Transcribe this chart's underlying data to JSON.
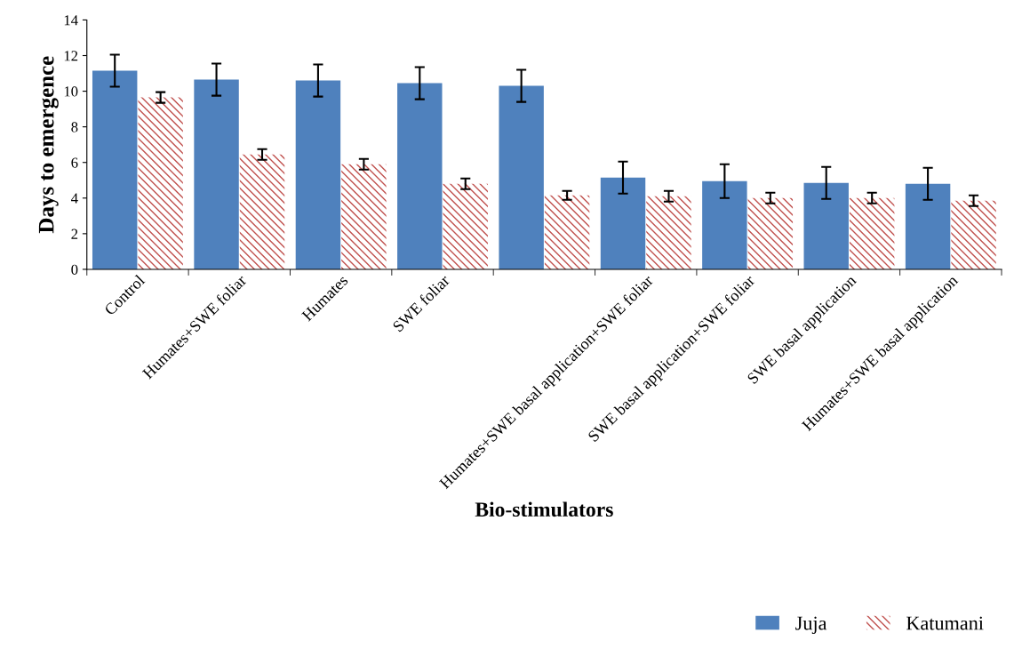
{
  "chart_data": {
    "type": "bar",
    "xlabel": "Bio-stimulators",
    "ylabel": "Days to emergence",
    "categories": [
      "Control",
      "Humates+SWE foliar",
      "Humates",
      "SWE foliar",
      null,
      "Humates+SWE basal application+SWE foliar",
      "SWE basal application+SWE foliar",
      "SWE basal application",
      "Humates+SWE basal application"
    ],
    "series": [
      {
        "name": "Juja",
        "color": "#4f81bd",
        "values": [
          11.15,
          10.65,
          10.6,
          10.45,
          10.3,
          5.15,
          4.95,
          4.85,
          4.8
        ],
        "errors": [
          0.9,
          0.9,
          0.9,
          0.9,
          0.9,
          0.9,
          0.95,
          0.9,
          0.9
        ]
      },
      {
        "name": "Katumani",
        "color": "#c0504d",
        "values": [
          9.65,
          6.45,
          5.9,
          4.8,
          4.15,
          4.1,
          4.0,
          4.0,
          3.85
        ],
        "errors": [
          0.3,
          0.3,
          0.3,
          0.3,
          0.25,
          0.3,
          0.3,
          0.3,
          0.3
        ]
      }
    ],
    "ylim": [
      0,
      14
    ],
    "yticks": [
      0,
      2,
      4,
      6,
      8,
      10,
      12,
      14
    ],
    "grid": false,
    "legend": "bottom right"
  }
}
